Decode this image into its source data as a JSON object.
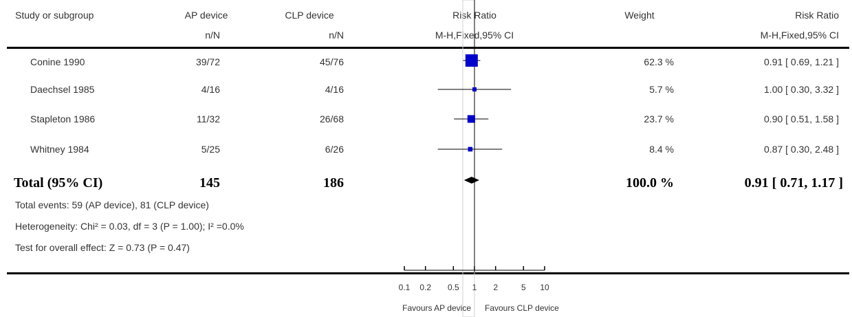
{
  "header": {
    "study_label": "Study or subgroup",
    "group1": "AP device",
    "group2": "CLP device",
    "n_label": "n/N",
    "rr_label": "Risk Ratio",
    "method_label": "M-H,Fixed,95% CI",
    "weight_label": "Weight"
  },
  "studies": [
    {
      "name": "Conine 1990",
      "g1": "39/72",
      "g2": "45/76",
      "weight": "62.3 %",
      "ci_text": "0.91 [ 0.69, 1.21 ]"
    },
    {
      "name": "Daechsel 1985",
      "g1": "4/16",
      "g2": "4/16",
      "weight": "5.7 %",
      "ci_text": "1.00 [ 0.30, 3.32 ]"
    },
    {
      "name": "Stapleton 1986",
      "g1": "11/32",
      "g2": "26/68",
      "weight": "23.7 %",
      "ci_text": "0.90 [ 0.51, 1.58 ]"
    },
    {
      "name": "Whitney 1984",
      "g1": "5/25",
      "g2": "6/26",
      "weight": "8.4 %",
      "ci_text": "0.87 [ 0.30, 2.48 ]"
    }
  ],
  "total": {
    "label": "Total (95% CI)",
    "g1": "145",
    "g2": "186",
    "weight": "100.0 %",
    "ci_text": "0.91 [ 0.71, 1.17 ]"
  },
  "notes": {
    "events": "Total events: 59 (AP device), 81 (CLP device)",
    "heterogeneity": "Heterogeneity: Chi² = 0.03, df = 3 (P = 1.00); I² =0.0%",
    "overall": "Test for overall effect: Z = 0.73 (P = 0.47)"
  },
  "axis": {
    "ticks": [
      "0.1",
      "0.2",
      "0.5",
      "1",
      "2",
      "5",
      "10"
    ],
    "favours_left": "Favours AP device",
    "favours_right": "Favours CLP device"
  },
  "chart_data": {
    "type": "forest",
    "scale": "log",
    "xlim": [
      0.1,
      10
    ],
    "xticks": [
      0.1,
      0.2,
      0.5,
      1,
      2,
      5,
      10
    ],
    "studies": [
      {
        "name": "Conine 1990",
        "rr": 0.91,
        "lo": 0.69,
        "hi": 1.21,
        "weight": 62.3
      },
      {
        "name": "Daechsel 1985",
        "rr": 1.0,
        "lo": 0.3,
        "hi": 3.32,
        "weight": 5.7
      },
      {
        "name": "Stapleton 1986",
        "rr": 0.9,
        "lo": 0.51,
        "hi": 1.58,
        "weight": 23.7
      },
      {
        "name": "Whitney 1984",
        "rr": 0.87,
        "lo": 0.3,
        "hi": 2.48,
        "weight": 8.4
      }
    ],
    "total": {
      "rr": 0.91,
      "lo": 0.71,
      "hi": 1.17
    },
    "colors": {
      "box": "#0000cc",
      "diamond": "#000000",
      "line": "#000000"
    }
  }
}
